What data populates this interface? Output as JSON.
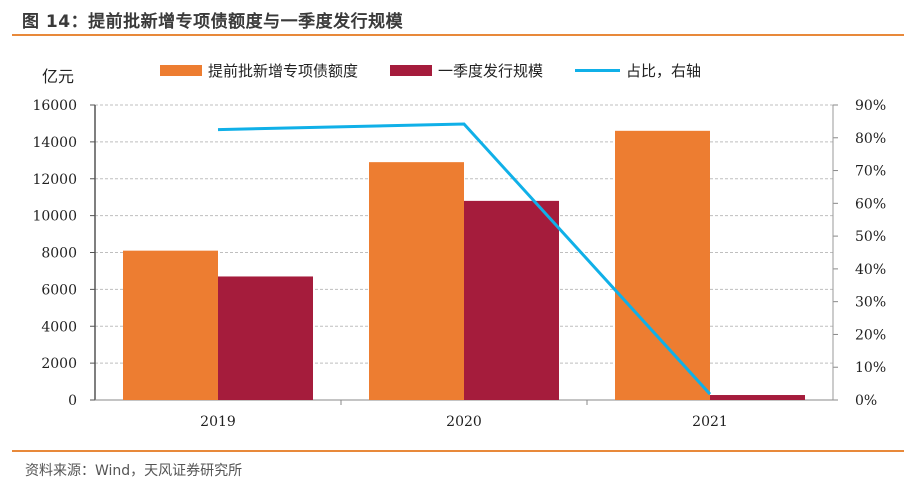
{
  "header": {
    "title": "图 14：提前批新增专项债额度与一季度发行规模"
  },
  "footer": {
    "source": "资料来源：Wind，天风证券研究所"
  },
  "chart_data": {
    "type": "bar",
    "title": "图 14：提前批新增专项债额度与一季度发行规模",
    "ylabel": "亿元",
    "xlabel": "",
    "categories": [
      "2019",
      "2020",
      "2021"
    ],
    "series": [
      {
        "name": "提前批新增专项债额度",
        "type": "bar",
        "axis": "left",
        "color": "#ed7d31",
        "values": [
          8100,
          12900,
          14600
        ]
      },
      {
        "name": "一季度发行规模",
        "type": "bar",
        "axis": "left",
        "color": "#a51c3c",
        "values": [
          6700,
          10800,
          270
        ]
      },
      {
        "name": "占比，右轴",
        "type": "line",
        "axis": "right",
        "color": "#10b0e8",
        "values": [
          82.5,
          84.2,
          1.8
        ]
      }
    ],
    "ylim": [
      0,
      16000
    ],
    "y_ticks": [
      "0",
      "2000",
      "4000",
      "6000",
      "8000",
      "10000",
      "12000",
      "14000",
      "16000"
    ],
    "y2lim": [
      0,
      90
    ],
    "y2_ticks": [
      "0%",
      "10%",
      "20%",
      "30%",
      "40%",
      "50%",
      "60%",
      "70%",
      "80%",
      "90%"
    ],
    "grid": true,
    "legend_position": "top"
  }
}
